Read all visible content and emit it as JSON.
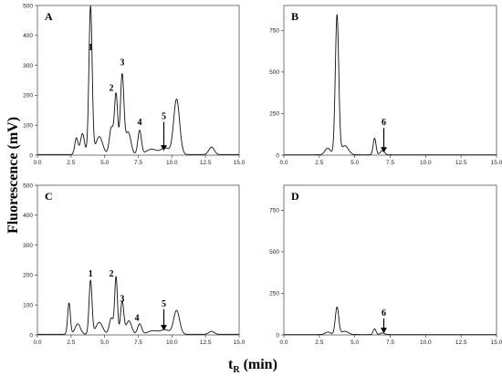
{
  "figure": {
    "ylabel": "Fluorescence  (mV)",
    "xlabel": {
      "main": "t",
      "sub": "R",
      "unit": " (min)"
    }
  },
  "chart_data": [
    {
      "type": "line",
      "panel": "A",
      "xlim": [
        0,
        15
      ],
      "ylim": [
        0,
        500
      ],
      "xticks": [
        "0.0",
        "2.5",
        "5.0",
        "7.5",
        "10.0",
        "12.5",
        "15.0"
      ],
      "yticks": [
        "0",
        "100",
        "200",
        "300",
        "400",
        "500"
      ],
      "series": [
        {
          "peaks": [
            [
              2.9,
              55,
              0.12
            ],
            [
              3.35,
              70,
              0.15
            ],
            [
              3.95,
              495,
              0.12
            ],
            [
              4.6,
              60,
              0.25
            ],
            [
              5.5,
              90,
              0.15
            ],
            [
              5.85,
              200,
              0.12
            ],
            [
              6.3,
              265,
              0.13
            ],
            [
              6.75,
              75,
              0.2
            ],
            [
              7.6,
              80,
              0.13
            ],
            [
              8.5,
              18,
              0.4
            ],
            [
              9.5,
              22,
              0.3
            ],
            [
              10.35,
              185,
              0.22
            ],
            [
              12.95,
              25,
              0.2
            ]
          ]
        }
      ],
      "peak_labels": [
        {
          "text": "1",
          "x": 3.95,
          "y": 350
        },
        {
          "text": "2",
          "x": 5.5,
          "y": 215
        },
        {
          "text": "3",
          "x": 6.3,
          "y": 300
        },
        {
          "text": "4",
          "x": 7.6,
          "y": 100
        },
        {
          "text": "5",
          "x": 9.4,
          "y": 120,
          "arrow_to": 15
        }
      ]
    },
    {
      "type": "line",
      "panel": "B",
      "xlim": [
        0,
        15
      ],
      "ylim": [
        0,
        900
      ],
      "xticks": [
        "0.0",
        "2.5",
        "5.0",
        "7.5",
        "10.0",
        "12.5",
        "15.0"
      ],
      "yticks": [
        "0",
        "250",
        "500",
        "750"
      ],
      "series": [
        {
          "peaks": [
            [
              3.1,
              40,
              0.2
            ],
            [
              3.75,
              840,
              0.12
            ],
            [
              4.3,
              55,
              0.25
            ],
            [
              6.4,
              100,
              0.1
            ],
            [
              6.95,
              25,
              0.15
            ]
          ]
        }
      ],
      "peak_labels": [
        {
          "text": "6",
          "x": 7.05,
          "y": 180,
          "arrow_to": 15
        }
      ]
    },
    {
      "type": "line",
      "panel": "C",
      "xlim": [
        0,
        15
      ],
      "ylim": [
        0,
        500
      ],
      "xticks": [
        "0.0",
        "2.5",
        "5.0",
        "7.5",
        "10.0",
        "12.5",
        "15.0"
      ],
      "yticks": [
        "0",
        "100",
        "200",
        "300",
        "400",
        "500"
      ],
      "series": [
        {
          "peaks": [
            [
              2.35,
              105,
              0.1
            ],
            [
              3.0,
              35,
              0.2
            ],
            [
              3.95,
              180,
              0.11
            ],
            [
              4.6,
              40,
              0.25
            ],
            [
              5.5,
              55,
              0.15
            ],
            [
              5.85,
              190,
              0.1
            ],
            [
              6.3,
              110,
              0.12
            ],
            [
              6.8,
              45,
              0.2
            ],
            [
              7.6,
              35,
              0.15
            ],
            [
              8.6,
              12,
              0.4
            ],
            [
              9.5,
              15,
              0.3
            ],
            [
              10.35,
              80,
              0.22
            ],
            [
              12.95,
              10,
              0.2
            ]
          ]
        }
      ],
      "peak_labels": [
        {
          "text": "1",
          "x": 3.95,
          "y": 195
        },
        {
          "text": "2",
          "x": 5.5,
          "y": 195
        },
        {
          "text": "3",
          "x": 6.3,
          "y": 112
        },
        {
          "text": "4",
          "x": 7.4,
          "y": 48
        },
        {
          "text": "5",
          "x": 9.4,
          "y": 95,
          "arrow_to": 15
        }
      ]
    },
    {
      "type": "line",
      "panel": "D",
      "xlim": [
        0,
        15
      ],
      "ylim": [
        0,
        900
      ],
      "xticks": [
        "0.0",
        "2.5",
        "5.0",
        "7.5",
        "10.0",
        "12.5",
        "15.0"
      ],
      "yticks": [
        "0",
        "250",
        "500",
        "750"
      ],
      "series": [
        {
          "peaks": [
            [
              3.1,
              15,
              0.2
            ],
            [
              3.75,
              165,
              0.12
            ],
            [
              4.3,
              20,
              0.25
            ],
            [
              6.4,
              35,
              0.1
            ],
            [
              6.95,
              10,
              0.15
            ]
          ]
        }
      ],
      "peak_labels": [
        {
          "text": "6",
          "x": 7.05,
          "y": 115,
          "arrow_to": 10
        }
      ]
    }
  ]
}
